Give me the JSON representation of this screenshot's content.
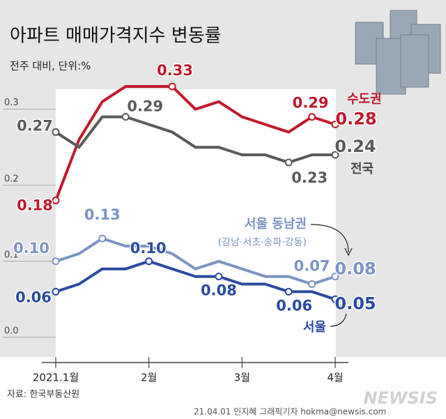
{
  "chart_data": {
    "type": "line",
    "title": "아파트 매매가격지수 변동률",
    "subtitle": "전주 대비, 단위:%",
    "categories": [
      "2021.1월",
      null,
      null,
      null,
      "2월",
      null,
      null,
      null,
      "3월",
      null,
      null,
      null,
      "4월"
    ],
    "ylim": [
      -0.024,
      0.33
    ],
    "yticks": [
      {
        "value": 0,
        "label": "0.0"
      },
      0.1,
      0.2,
      0.3
    ],
    "series": [
      {
        "name": "수도권",
        "color": "#c0192b",
        "values": [
          0.18,
          0.26,
          0.31,
          0.33,
          0.33,
          0.33,
          0.3,
          0.31,
          0.29,
          0.28,
          0.27,
          0.29,
          0.28
        ],
        "value_labels": [
          "0.18",
          null,
          null,
          null,
          null,
          "0.33",
          null,
          null,
          null,
          null,
          null,
          "0.29",
          "0.28"
        ]
      },
      {
        "name": "전국",
        "color": "#5a5a5a",
        "values": [
          0.27,
          0.25,
          0.29,
          0.29,
          0.28,
          0.27,
          0.25,
          0.25,
          0.24,
          0.24,
          0.23,
          0.24,
          0.24
        ],
        "value_labels": [
          "0.27",
          null,
          null,
          "0.29",
          null,
          null,
          null,
          null,
          null,
          null,
          "0.23",
          null,
          "0.24"
        ]
      },
      {
        "name": "서울 동남권",
        "note": "(강남·서초·송파·강동)",
        "color": "#7b93c2",
        "values": [
          0.1,
          0.11,
          0.13,
          0.12,
          0.12,
          0.11,
          0.09,
          0.1,
          0.09,
          0.08,
          0.08,
          0.07,
          0.08
        ],
        "value_labels": [
          "0.10",
          null,
          "0.13",
          null,
          null,
          null,
          null,
          null,
          null,
          null,
          null,
          "0.07",
          "0.08"
        ]
      },
      {
        "name": "서울",
        "color": "#2a4a9f",
        "values": [
          0.06,
          0.07,
          0.09,
          0.09,
          0.1,
          0.09,
          0.08,
          0.08,
          0.07,
          0.07,
          0.06,
          0.06,
          0.05
        ],
        "value_labels": [
          "0.06",
          null,
          null,
          null,
          "0.10",
          null,
          null,
          "0.08",
          null,
          null,
          "0.06",
          null,
          "0.05"
        ]
      }
    ],
    "source": "자료: 한국부동산원",
    "credit": "21.04.01 인지혜 그래픽기자 hokma@newsis.com",
    "logo": "NEWSIS"
  }
}
